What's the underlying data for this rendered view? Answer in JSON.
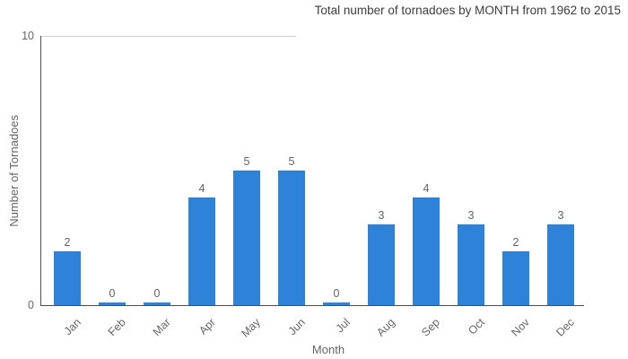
{
  "chart_data": {
    "type": "bar",
    "title": "Total number of tornadoes by MONTH from 1962 to 2015",
    "xlabel": "Month",
    "ylabel": "Number of Tornadoes",
    "categories": [
      "Jan",
      "Feb",
      "Mar",
      "Apr",
      "May",
      "Jun",
      "Jul",
      "Aug",
      "Sep",
      "Oct",
      "Nov",
      "Dec"
    ],
    "values": [
      2,
      0,
      0,
      4,
      5,
      5,
      0,
      3,
      4,
      3,
      2,
      3
    ],
    "bar_value_labels": [
      "2",
      "0",
      "0",
      "4",
      "5",
      "5",
      "0",
      "3",
      "4",
      "3",
      "2",
      "3"
    ],
    "ylim": [
      0,
      10
    ],
    "yticks": [
      0,
      10
    ],
    "legend": "none",
    "grid": "single top gridline at y=10, left portion only",
    "colors": {
      "bar": "#2E82D8",
      "axis_line": "#4e4e4e",
      "gridline": "#cbcbcb",
      "tick_label": "#666666",
      "value_label": "#636363",
      "title": "#3d3d3d",
      "background": "#ffffff"
    }
  }
}
